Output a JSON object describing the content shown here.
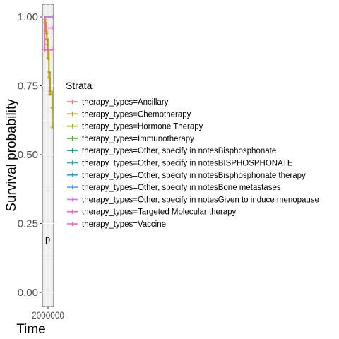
{
  "chart_data": {
    "type": "line",
    "subtype": "kaplan-meier step",
    "title": "",
    "xlabel": "Time",
    "ylabel": "Survival probability",
    "ylim": [
      0,
      1
    ],
    "yticks": [
      "0.00",
      "0.25",
      "0.50",
      "0.75",
      "1.00"
    ],
    "xtick_text": "2000000",
    "annotation": "p",
    "legend": {
      "title": "Strata",
      "position": "right"
    },
    "series": [
      {
        "name": "therapy_types=Ancillary",
        "color": "#F8766D",
        "x": [
          0,
          40
        ],
        "y": [
          1.0,
          1.0
        ]
      },
      {
        "name": "therapy_types=Chemotherapy",
        "color": "#D89000",
        "x": [
          0,
          6,
          8,
          10,
          12,
          14,
          16,
          18,
          20,
          24,
          30,
          40
        ],
        "y": [
          1.0,
          0.99,
          0.98,
          0.96,
          0.94,
          0.92,
          0.9,
          0.88,
          0.85,
          0.78,
          0.73,
          0.67
        ]
      },
      {
        "name": "therapy_types=Hormone Therapy",
        "color": "#A3A500",
        "x": [
          0,
          5,
          10,
          15,
          20,
          25,
          30,
          40
        ],
        "y": [
          1.0,
          0.98,
          0.95,
          0.92,
          0.88,
          0.8,
          0.72,
          0.6
        ]
      },
      {
        "name": "therapy_types=Immunotherapy",
        "color": "#39B600",
        "x": [
          0,
          40
        ],
        "y": [
          1.0,
          1.0
        ]
      },
      {
        "name": "therapy_types=Other, specify in notesBisphosphonate",
        "color": "#00BF7D",
        "x": [
          0,
          40
        ],
        "y": [
          1.0,
          1.0
        ]
      },
      {
        "name": "therapy_types=Other, specify in notesBISPHOSPHONATE",
        "color": "#00BFC4",
        "x": [
          0,
          40
        ],
        "y": [
          1.0,
          1.0
        ]
      },
      {
        "name": "therapy_types=Other, specify in notesBisphosphonate therapy",
        "color": "#00B0F6",
        "x": [
          0,
          40
        ],
        "y": [
          1.0,
          1.0
        ]
      },
      {
        "name": "therapy_types=Other, specify in notesBone metastases",
        "color": "#619CFF",
        "x": [
          0,
          40
        ],
        "y": [
          1.0,
          1.0
        ]
      },
      {
        "name": "therapy_types=Other, specify in notesGiven to induce menopause",
        "color": "#E76BF3",
        "x": [
          0,
          40
        ],
        "y": [
          1.0,
          1.0
        ]
      },
      {
        "name": "therapy_types=Targeted Molecular therapy",
        "color": "#FF62BC",
        "x": [
          0,
          5,
          40
        ],
        "y": [
          1.0,
          0.88,
          0.88
        ]
      },
      {
        "name": "therapy_types=Vaccine",
        "color": "#FF61C3",
        "x": [
          0,
          40
        ],
        "y": [
          0.96,
          0.96
        ]
      }
    ]
  }
}
